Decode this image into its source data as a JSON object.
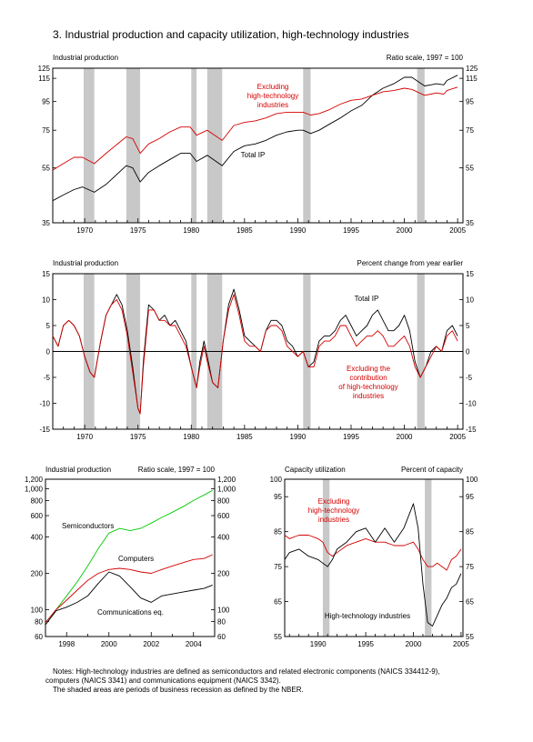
{
  "figure_title": "3.  Industrial production and capacity utilization, high-technology industries",
  "notes": [
    "Notes:  High-technology industries are defined as semiconductors and related electronic components (NAICS 334412-9),",
    "computers (NAICS 3341) and communications equipment (NAICS 3342).",
    "The shaded areas are periods of business recession as defined by the NBER."
  ],
  "colors": {
    "total": "#000000",
    "excluding": "#d40000",
    "semiconductors": "#00c800",
    "recession": "#c8c8c8"
  },
  "chart_data": [
    {
      "id": "ip_level",
      "type": "line",
      "title": "Industrial production",
      "scale_note": "Ratio scale, 1997 = 100",
      "yscale": "log",
      "xlim": [
        1967,
        2005.5
      ],
      "ylim": [
        35,
        125
      ],
      "x_ticks": [
        1970,
        1975,
        1980,
        1985,
        1990,
        1995,
        2000,
        2005
      ],
      "y_ticks": [
        35,
        55,
        75,
        95,
        115,
        125
      ],
      "recessions": [
        [
          1969.9,
          1970.9
        ],
        [
          1973.9,
          1975.2
        ],
        [
          1980.0,
          1980.5
        ],
        [
          1981.5,
          1982.9
        ],
        [
          1990.5,
          1991.2
        ],
        [
          2001.2,
          2001.9
        ]
      ],
      "series": [
        {
          "name": "Total IP",
          "color": "#000000",
          "x": [
            1967,
            1968,
            1969,
            1969.8,
            1970.9,
            1972,
            1973.9,
            1974.5,
            1975.2,
            1976,
            1977,
            1978,
            1979,
            1979.9,
            1980.5,
            1981.5,
            1982.9,
            1984,
            1985,
            1986,
            1987,
            1988,
            1989,
            1990,
            1990.5,
            1991.2,
            1992,
            1993,
            1994,
            1995,
            1996,
            1997,
            1998,
            1999,
            2000,
            2000.7,
            2001.9,
            2002.5,
            2003,
            2003.7,
            2004,
            2005
          ],
          "y": [
            42,
            44,
            46,
            47,
            45,
            48,
            56,
            55,
            49,
            53,
            56,
            59,
            62,
            62,
            58,
            61,
            56,
            63,
            66,
            67,
            69,
            72,
            74,
            75,
            75,
            73,
            75,
            79,
            83,
            88,
            92,
            100,
            106,
            110,
            116,
            116,
            108,
            109,
            110,
            109,
            113,
            118
          ]
        },
        {
          "name": "Excluding high-technology industries",
          "color": "#d40000",
          "x": [
            1967,
            1968,
            1969,
            1969.8,
            1970.9,
            1972,
            1973.9,
            1974.5,
            1975.2,
            1976,
            1977,
            1978,
            1979,
            1979.9,
            1980.5,
            1981.5,
            1982.9,
            1984,
            1985,
            1986,
            1987,
            1988,
            1989,
            1990,
            1990.5,
            1991.2,
            1992,
            1993,
            1994,
            1995,
            1996,
            1997,
            1998,
            1999,
            2000,
            2000.7,
            2001.9,
            2002.5,
            2003,
            2003.7,
            2004,
            2005
          ],
          "y": [
            54,
            57,
            60,
            60,
            57,
            62,
            71,
            70,
            62,
            67,
            70,
            74,
            77,
            77,
            72,
            75,
            69,
            78,
            80,
            81,
            83,
            86,
            87,
            87,
            87,
            85,
            86,
            89,
            93,
            96,
            97,
            100,
            103,
            104,
            106,
            105,
            100,
            101,
            102,
            101,
            104,
            107
          ]
        }
      ],
      "annotations": [
        "Excluding high-technology industries",
        "Total IP"
      ]
    },
    {
      "id": "ip_pct_change",
      "type": "line",
      "title": "Industrial production",
      "scale_note": "Percent change from year earlier",
      "xlim": [
        1967,
        2005.5
      ],
      "ylim": [
        -15,
        15
      ],
      "x_ticks": [
        1970,
        1975,
        1980,
        1985,
        1990,
        1995,
        2000,
        2005
      ],
      "y_ticks": [
        -15,
        -10,
        -5,
        0,
        5,
        10,
        15
      ],
      "recessions": [
        [
          1969.9,
          1970.9
        ],
        [
          1973.9,
          1975.2
        ],
        [
          1980.0,
          1980.5
        ],
        [
          1981.5,
          1982.9
        ],
        [
          1990.5,
          1991.2
        ],
        [
          2001.2,
          2001.9
        ]
      ],
      "series": [
        {
          "name": "Total IP",
          "color": "#000000",
          "x": [
            1967,
            1967.5,
            1968,
            1968.5,
            1969,
            1969.5,
            1970,
            1970.5,
            1970.9,
            1971.5,
            1972,
            1972.5,
            1973,
            1973.5,
            1974,
            1974.5,
            1975,
            1975.2,
            1975.5,
            1976,
            1976.5,
            1977,
            1977.5,
            1978,
            1978.5,
            1979,
            1979.5,
            1980,
            1980.5,
            1980.8,
            1981.2,
            1981.5,
            1982,
            1982.5,
            1983,
            1983.5,
            1984,
            1984.5,
            1985,
            1985.5,
            1986,
            1986.5,
            1987,
            1987.5,
            1988,
            1988.5,
            1989,
            1989.5,
            1990,
            1990.5,
            1991,
            1991.5,
            1992,
            1992.5,
            1993,
            1993.5,
            1994,
            1994.5,
            1995,
            1995.5,
            1996,
            1996.5,
            1997,
            1997.5,
            1998,
            1998.5,
            1999,
            1999.5,
            2000,
            2000.5,
            2001,
            2001.5,
            2002,
            2002.5,
            2003,
            2003.5,
            2004,
            2004.5,
            2005
          ],
          "y": [
            3,
            1,
            5,
            6,
            5,
            3,
            -1,
            -4,
            -5,
            2,
            7,
            9,
            11,
            9,
            4,
            -3,
            -11,
            -12,
            -2,
            9,
            8,
            6,
            7,
            5,
            6,
            4,
            2,
            -3,
            -7,
            -2,
            2,
            -1,
            -6,
            -7,
            2,
            9,
            12,
            8,
            3,
            2,
            1,
            0,
            4,
            6,
            6,
            5,
            2,
            1,
            -1,
            0,
            -3,
            -2,
            2,
            3,
            3,
            4,
            6,
            7,
            5,
            3,
            4,
            5,
            7,
            8,
            6,
            4,
            4,
            5,
            7,
            4,
            -2,
            -5,
            -3,
            0,
            1,
            0,
            4,
            5,
            3
          ]
        },
        {
          "name": "Excluding the contribution of high-technology industries",
          "color": "#d40000",
          "x": [
            1967,
            1967.5,
            1968,
            1968.5,
            1969,
            1969.5,
            1970,
            1970.5,
            1970.9,
            1971.5,
            1972,
            1972.5,
            1973,
            1973.5,
            1974,
            1974.5,
            1975,
            1975.2,
            1975.5,
            1976,
            1976.5,
            1977,
            1977.5,
            1978,
            1978.5,
            1979,
            1979.5,
            1980,
            1980.5,
            1980.8,
            1981.2,
            1981.5,
            1982,
            1982.5,
            1983,
            1983.5,
            1984,
            1984.5,
            1985,
            1985.5,
            1986,
            1986.5,
            1987,
            1987.5,
            1988,
            1988.5,
            1989,
            1989.5,
            1990,
            1990.5,
            1991,
            1991.5,
            1992,
            1992.5,
            1993,
            1993.5,
            1994,
            1994.5,
            1995,
            1995.5,
            1996,
            1996.5,
            1997,
            1997.5,
            1998,
            1998.5,
            1999,
            1999.5,
            2000,
            2000.5,
            2001,
            2001.5,
            2002,
            2002.5,
            2003,
            2003.5,
            2004,
            2004.5,
            2005
          ],
          "y": [
            3,
            1,
            5,
            6,
            5,
            3,
            -1,
            -4,
            -5,
            2,
            7,
            9,
            10,
            8,
            3,
            -4,
            -11,
            -12,
            -3,
            8,
            8,
            6,
            6,
            5,
            5,
            3,
            1,
            -3,
            -7,
            -3,
            1,
            -2,
            -6,
            -7,
            2,
            8,
            11,
            7,
            2,
            1,
            1,
            0,
            4,
            5,
            5,
            4,
            1,
            0,
            -1,
            0,
            -3,
            -3,
            1,
            2,
            2,
            3,
            5,
            5,
            3,
            1,
            2,
            3,
            3,
            4,
            3,
            1,
            1,
            2,
            3,
            1,
            -3,
            -5,
            -3,
            -1,
            1,
            0,
            3,
            4,
            2
          ]
        }
      ],
      "annotations": [
        "Total IP",
        "Excluding the contribution of high-technology industries"
      ]
    },
    {
      "id": "hitech_ip",
      "type": "line",
      "title": "Industrial production",
      "scale_note": "Ratio scale, 1997 = 100",
      "yscale": "log",
      "xlim": [
        1997,
        2005
      ],
      "ylim": [
        60,
        1200
      ],
      "x_ticks": [
        1998,
        2000,
        2002,
        2004
      ],
      "y_ticks": [
        60,
        80,
        100,
        200,
        400,
        600,
        800,
        1000,
        1200
      ],
      "y_tick_labels": [
        "60",
        "80",
        "100",
        "200",
        "400",
        "600",
        "800",
        "1,000",
        "1,200"
      ],
      "series": [
        {
          "name": "Semiconductors",
          "color": "#00c800",
          "x": [
            1997,
            1997.5,
            1998,
            1998.5,
            1999,
            1999.5,
            2000,
            2000.5,
            2001,
            2001.5,
            2002,
            2002.5,
            2003,
            2003.5,
            2004,
            2004.5,
            2004.9
          ],
          "y": [
            78,
            100,
            130,
            170,
            230,
            320,
            430,
            470,
            450,
            470,
            520,
            580,
            640,
            710,
            800,
            890,
            970
          ]
        },
        {
          "name": "Computers",
          "color": "#d40000",
          "x": [
            1997,
            1997.5,
            1998,
            1998.5,
            1999,
            1999.5,
            2000,
            2000.5,
            2001,
            2001.5,
            2002,
            2002.5,
            2003,
            2003.5,
            2004,
            2004.5,
            2004.9
          ],
          "y": [
            78,
            100,
            120,
            145,
            175,
            200,
            215,
            220,
            215,
            205,
            200,
            215,
            230,
            245,
            260,
            265,
            285
          ]
        },
        {
          "name": "Communications eq.",
          "color": "#000000",
          "x": [
            1997,
            1997.5,
            1998,
            1998.5,
            1999,
            1999.5,
            2000,
            2000.5,
            2001,
            2001.5,
            2002,
            2002.5,
            2003,
            2003.5,
            2004,
            2004.5,
            2004.9
          ],
          "y": [
            75,
            98,
            105,
            115,
            130,
            165,
            205,
            190,
            155,
            125,
            115,
            130,
            135,
            140,
            145,
            150,
            160
          ]
        }
      ],
      "annotations": [
        "Semiconductors",
        "Computers",
        "Communications eq."
      ]
    },
    {
      "id": "capacity_utilization",
      "type": "line",
      "title": "Capacity utilization",
      "scale_note": "Percent of capacity",
      "xlim": [
        1986.5,
        2005.2
      ],
      "ylim": [
        55,
        100
      ],
      "x_ticks": [
        1990,
        1995,
        2000,
        2005
      ],
      "y_ticks": [
        55,
        65,
        75,
        85,
        95,
        100
      ],
      "recessions": [
        [
          1990.5,
          1991.2
        ],
        [
          2001.2,
          2001.9
        ]
      ],
      "series": [
        {
          "name": "Excluding high-technology industries",
          "color": "#d40000",
          "x": [
            1986.5,
            1987,
            1988,
            1989,
            1990,
            1990.5,
            1991,
            1991.5,
            1992,
            1993,
            1994,
            1995,
            1996,
            1997,
            1998,
            1999,
            2000,
            2000.5,
            2001,
            2001.5,
            2002,
            2002.5,
            2003,
            2003.5,
            2004,
            2004.5,
            2005
          ],
          "y": [
            84,
            83,
            84,
            84,
            83,
            82,
            79,
            78,
            79,
            81,
            82,
            83,
            82,
            82,
            81,
            81,
            82,
            80,
            77,
            75,
            75,
            76,
            75,
            74,
            77,
            78,
            80
          ]
        },
        {
          "name": "High-technology industries",
          "color": "#000000",
          "x": [
            1986.5,
            1987,
            1988,
            1989,
            1990,
            1990.5,
            1991,
            1991.5,
            1992,
            1993,
            1994,
            1995,
            1996,
            1997,
            1998,
            1999,
            2000,
            2000.5,
            2001,
            2001.5,
            2002,
            2002.5,
            2003,
            2003.5,
            2004,
            2004.5,
            2005
          ],
          "y": [
            77,
            79,
            80,
            78,
            77,
            76,
            75,
            77,
            80,
            82,
            85,
            86,
            82,
            86,
            82,
            86,
            93,
            86,
            70,
            59,
            58,
            61,
            64,
            66,
            69,
            70,
            73
          ]
        }
      ],
      "annotations": [
        "Excluding high-technology industries",
        "High-technology industries"
      ]
    }
  ]
}
